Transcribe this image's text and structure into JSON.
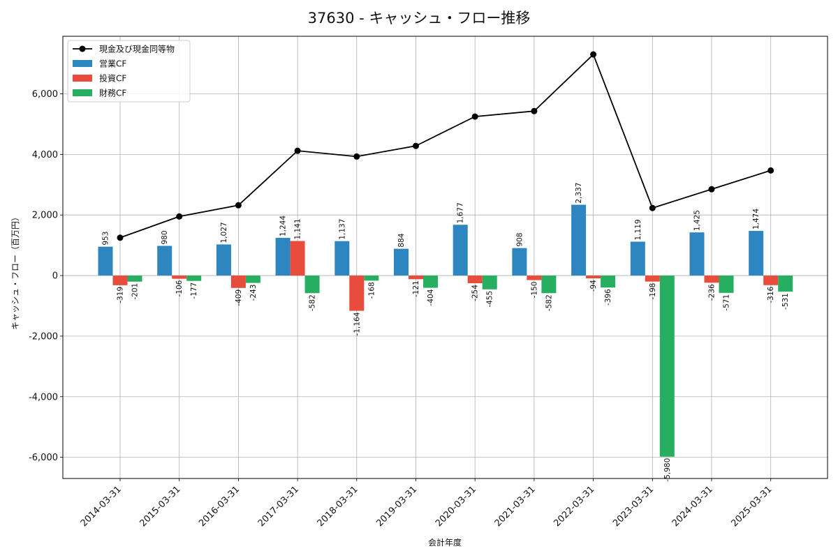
{
  "chart_data": {
    "type": "bar",
    "title": "37630 - キャッシュ・フロー推移",
    "xlabel": "会計年度",
    "ylabel": "キャッシュ・フロー（百万円）",
    "ylim": [
      -6700,
      7900
    ],
    "yticks": [
      -6000,
      -4000,
      -2000,
      0,
      2000,
      4000,
      6000
    ],
    "ytick_labels": [
      "-6,000",
      "-4,000",
      "-2,000",
      "0",
      "2,000",
      "4,000",
      "6,000"
    ],
    "grid": true,
    "legend_position": "top-left",
    "categories": [
      "2014-03-31",
      "2015-03-31",
      "2016-03-31",
      "2017-03-31",
      "2018-03-31",
      "2019-03-31",
      "2020-03-31",
      "2021-03-31",
      "2022-03-31",
      "2023-03-31",
      "2024-03-31",
      "2025-03-31"
    ],
    "series": [
      {
        "name": "営業CF",
        "kind": "bar",
        "color": "#2e86c1",
        "values": [
          953,
          980,
          1027,
          1244,
          1137,
          884,
          1677,
          908,
          2337,
          1119,
          1425,
          1474
        ],
        "labels": [
          "953",
          "980",
          "1,027",
          "1,244",
          "1,137",
          "884",
          "1,677",
          "908",
          "2,337",
          "1,119",
          "1,425",
          "1,474"
        ]
      },
      {
        "name": "投資CF",
        "kind": "bar",
        "color": "#e74c3c",
        "values": [
          -319,
          -106,
          -409,
          1141,
          -1164,
          -121,
          -254,
          -150,
          -94,
          -198,
          -236,
          -316
        ],
        "labels": [
          "-319",
          "-106",
          "-409",
          "1,141",
          "-1,164",
          "-121",
          "-254",
          "-150",
          "-94",
          "-198",
          "-236",
          "-316"
        ]
      },
      {
        "name": "財務CF",
        "kind": "bar",
        "color": "#27ae60",
        "values": [
          -201,
          -177,
          -243,
          -582,
          -168,
          -404,
          -455,
          -582,
          -396,
          -5980,
          -571,
          -531
        ],
        "labels": [
          "-201",
          "-177",
          "-243",
          "-582",
          "-168",
          "-404",
          "-455",
          "-582",
          "-396",
          "-5,980",
          "-571",
          "-531"
        ]
      },
      {
        "name": "現金及び現金同等物",
        "kind": "line",
        "color": "#000000",
        "values": [
          1250,
          1950,
          2320,
          4120,
          3930,
          4280,
          5250,
          5430,
          7300,
          2230,
          2850,
          3470
        ]
      }
    ]
  }
}
